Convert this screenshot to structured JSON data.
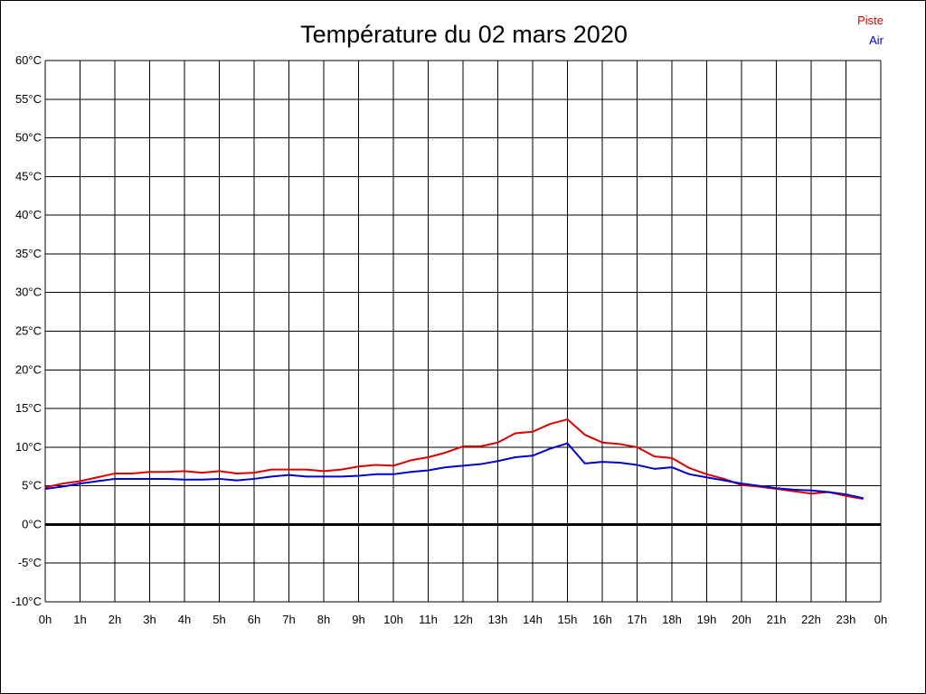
{
  "chart_data": {
    "type": "line",
    "title": "Température du 02 mars 2020",
    "xlabel": "",
    "ylabel": "",
    "xlim": [
      0,
      24
    ],
    "ylim": [
      -10,
      60
    ],
    "grid": true,
    "legend_position": "top-right",
    "x_tick_labels": [
      "0h",
      "1h",
      "2h",
      "3h",
      "4h",
      "5h",
      "6h",
      "7h",
      "8h",
      "9h",
      "10h",
      "11h",
      "12h",
      "13h",
      "14h",
      "15h",
      "16h",
      "17h",
      "18h",
      "19h",
      "20h",
      "21h",
      "22h",
      "23h",
      "0h"
    ],
    "y_tick_labels": [
      "60°C",
      "55°C",
      "50°C",
      "45°C",
      "40°C",
      "35°C",
      "30°C",
      "25°C",
      "20°C",
      "15°C",
      "10°C",
      "5°C",
      "0°C",
      "-5°C",
      "-10°C"
    ],
    "y_tick_values": [
      60,
      55,
      50,
      45,
      40,
      35,
      30,
      25,
      20,
      15,
      10,
      5,
      0,
      -5,
      -10
    ],
    "x": [
      0,
      0.5,
      1,
      1.5,
      2,
      2.5,
      3,
      3.5,
      4,
      4.5,
      5,
      5.5,
      6,
      6.5,
      7,
      7.5,
      8,
      8.5,
      9,
      9.5,
      10,
      10.5,
      11,
      11.5,
      12,
      12.5,
      13,
      13.5,
      14,
      14.5,
      15,
      15.5,
      16,
      16.5,
      17,
      17.5,
      18,
      18.5,
      19,
      19.5,
      20,
      20.5,
      21,
      21.5,
      22,
      22.5,
      23,
      23.5
    ],
    "series": [
      {
        "name": "Piste",
        "color": "#dd0000",
        "values": [
          4.8,
          5.3,
          5.6,
          6.1,
          6.6,
          6.6,
          6.8,
          6.8,
          6.9,
          6.7,
          6.9,
          6.6,
          6.7,
          7.1,
          7.1,
          7.1,
          6.9,
          7.1,
          7.5,
          7.7,
          7.6,
          8.3,
          8.7,
          9.3,
          10.1,
          10.1,
          10.6,
          11.8,
          12.0,
          13.0,
          13.6,
          11.6,
          10.6,
          10.4,
          10.0,
          8.8,
          8.6,
          7.3,
          6.5,
          5.9,
          5.1,
          4.9,
          4.6,
          4.3,
          4.0,
          4.2,
          3.7,
          3.3
        ]
      },
      {
        "name": "Air",
        "color": "#0000cc",
        "values": [
          4.6,
          4.9,
          5.3,
          5.6,
          5.9,
          5.9,
          5.9,
          5.9,
          5.8,
          5.8,
          5.9,
          5.7,
          5.9,
          6.2,
          6.4,
          6.2,
          6.2,
          6.2,
          6.3,
          6.5,
          6.5,
          6.8,
          7.0,
          7.4,
          7.6,
          7.8,
          8.2,
          8.7,
          8.9,
          9.8,
          10.5,
          7.9,
          8.1,
          8.0,
          7.7,
          7.2,
          7.4,
          6.5,
          6.1,
          5.7,
          5.3,
          5.0,
          4.7,
          4.5,
          4.4,
          4.2,
          3.9,
          3.4
        ]
      }
    ]
  }
}
